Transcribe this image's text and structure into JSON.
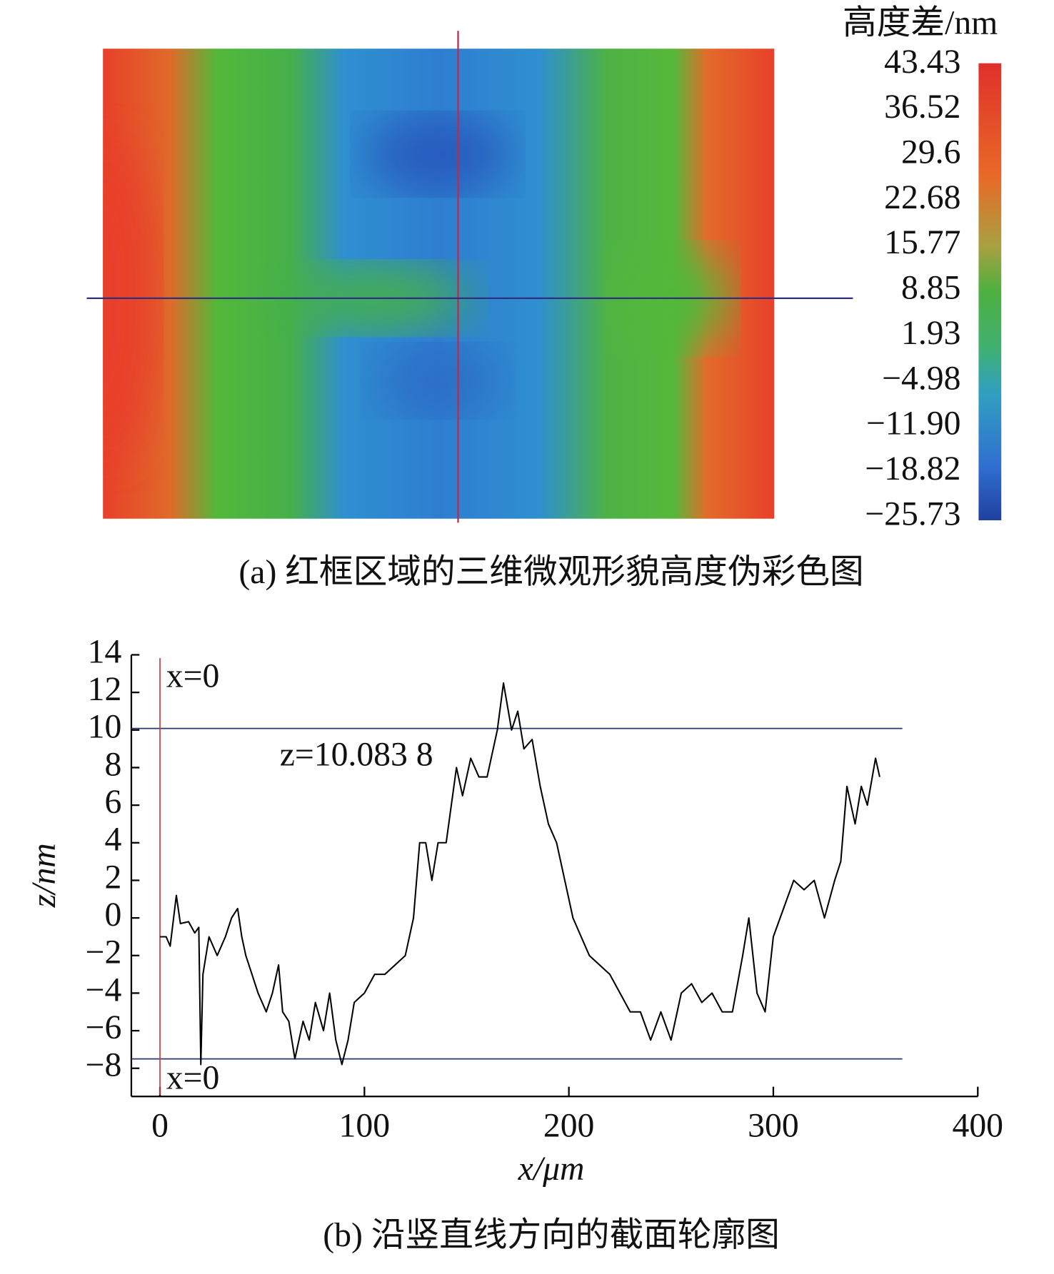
{
  "chart_data": [
    {
      "type": "heatmap",
      "colorbar_title": "高度差/nm",
      "colorbar_ticks": [
        43.43,
        36.52,
        29.6,
        22.68,
        15.77,
        8.85,
        1.93,
        {
          "value": -4.98,
          "label": "−4.98"
        },
        {
          "value": -11.9,
          "label": "−11.90"
        },
        {
          "value": -18.82,
          "label": "−18.82"
        },
        {
          "value": -25.73,
          "label": "−25.73"
        }
      ],
      "caption": "(a) 红框区域的三维微观形貌高度伪彩色图"
    },
    {
      "type": "line",
      "xlabel": "x/μm",
      "ylabel": "z/nm",
      "xlim": [
        -14,
        400
      ],
      "xticks": [
        0,
        100,
        200,
        300,
        400
      ],
      "ylim": [
        -9.5,
        14
      ],
      "yticks": [
        {
          "value": -8,
          "label": "−8"
        },
        {
          "value": -6,
          "label": "−6"
        },
        {
          "value": -4,
          "label": "−4"
        },
        {
          "value": -2,
          "label": "−2"
        },
        0,
        2,
        4,
        6,
        8,
        10,
        12,
        14
      ],
      "series": [
        {
          "color": "#000000",
          "x": [
            0,
            3,
            5,
            8,
            10,
            14,
            17,
            19,
            20,
            21,
            24,
            28,
            32,
            35,
            38,
            40,
            42,
            45,
            48,
            52,
            55,
            58,
            60,
            63,
            66,
            70,
            73,
            76,
            80,
            83,
            86,
            89,
            92,
            95,
            100,
            105,
            110,
            115,
            120,
            124,
            127,
            130,
            133,
            136,
            140,
            145,
            148,
            152,
            156,
            160,
            165,
            168,
            172,
            175,
            178,
            182,
            186,
            190,
            194,
            198,
            202,
            206,
            210,
            215,
            220,
            225,
            230,
            235,
            240,
            245,
            250,
            255,
            260,
            265,
            270,
            275,
            280,
            285,
            288,
            292,
            296,
            300,
            305,
            310,
            315,
            320,
            325,
            330,
            333,
            336,
            340,
            343,
            346,
            350,
            352
          ],
          "values": [
            -1,
            -1,
            -1.5,
            1.2,
            -0.3,
            -0.2,
            -0.8,
            -0.5,
            -7.8,
            -3,
            -1,
            -2,
            -1,
            0,
            0.5,
            -1,
            -2,
            -3,
            -4,
            -5,
            -4,
            -2.5,
            -5,
            -5.5,
            -7.5,
            -5.5,
            -6.5,
            -4.5,
            -6,
            -4,
            -6.5,
            -7.8,
            -6.5,
            -4.5,
            -4,
            -3,
            -3,
            -2.5,
            -2,
            0,
            4,
            4,
            2,
            4,
            4,
            8,
            6.5,
            8.5,
            7.5,
            7.5,
            10,
            12.5,
            10,
            11,
            9,
            9.5,
            7,
            5,
            4,
            2,
            0,
            -1,
            -2,
            -2.5,
            -3,
            -4,
            -5,
            -5,
            -6.5,
            -5,
            -6.5,
            -4,
            -3.5,
            -4.5,
            -4,
            -5,
            -5,
            -2,
            0,
            -4,
            -5,
            -1,
            0.5,
            2,
            1.5,
            2,
            0,
            2,
            3,
            7,
            5,
            7,
            6,
            8.5,
            7.5
          ]
        }
      ],
      "reference_lines": {
        "y": [
          10.0838,
          -7.5
        ],
        "x": [
          0
        ]
      },
      "annotations": [
        "x=0",
        "x=0",
        "z=10.083 8"
      ],
      "caption": "(b) 沿竖直线方向的截面轮廓图"
    }
  ]
}
